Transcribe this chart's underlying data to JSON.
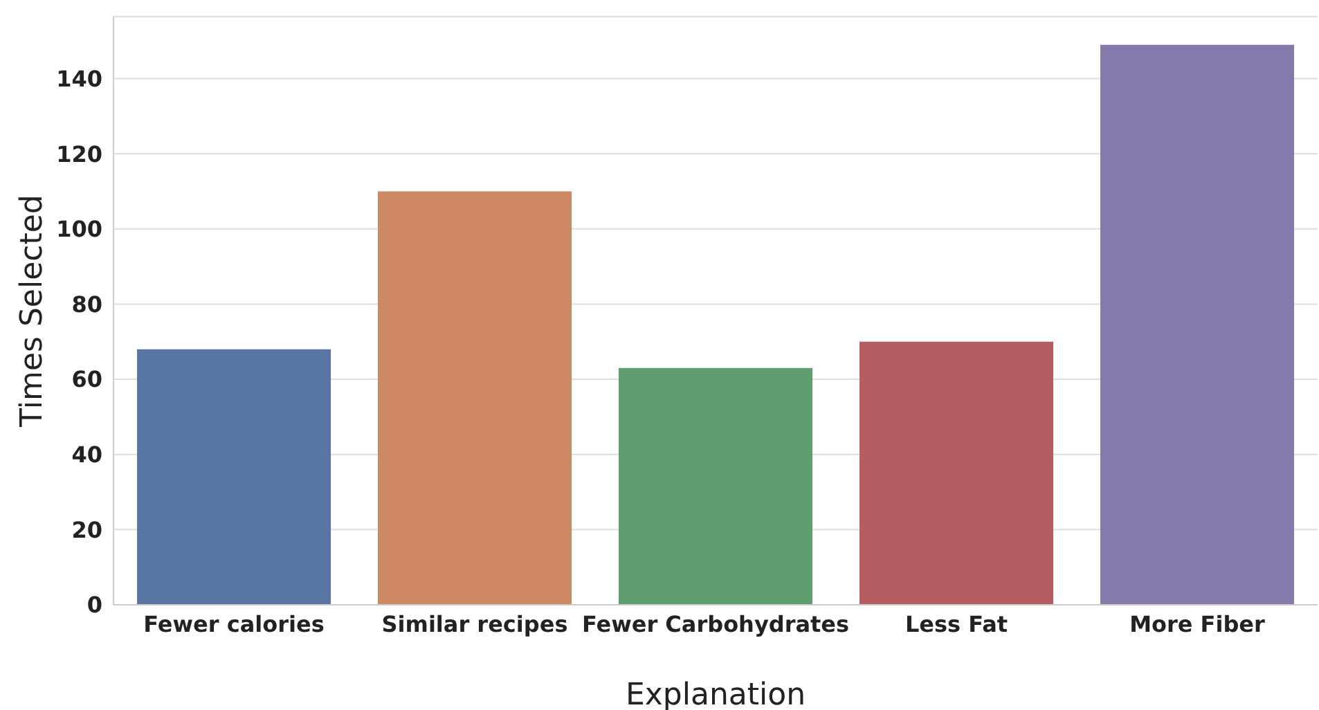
{
  "chart_data": {
    "type": "bar",
    "xlabel": "Explanation",
    "ylabel": "Times Selected",
    "categories": [
      "Fewer calories",
      "Similar recipes",
      "Fewer Carbohydrates",
      "Less Fat",
      "More Fiber"
    ],
    "values": [
      68,
      110,
      63,
      70,
      149
    ],
    "colors": [
      "#5975a4",
      "#cc8963",
      "#5f9e6e",
      "#b55d60",
      "#857aab"
    ],
    "ylim": [
      0,
      156.5
    ],
    "yticks": [
      0,
      20,
      40,
      60,
      80,
      100,
      120,
      140
    ],
    "grid": "y"
  }
}
